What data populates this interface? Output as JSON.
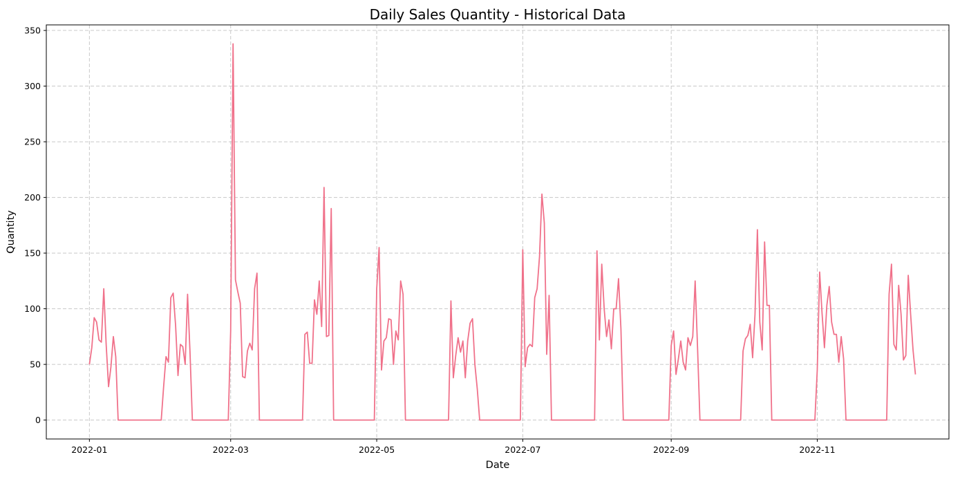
{
  "chart_data": {
    "type": "line",
    "title": "Daily Sales Quantity - Historical Data",
    "xlabel": "Date",
    "ylabel": "Quantity",
    "x_ticks": [
      "2022-01",
      "2022-03",
      "2022-05",
      "2022-07",
      "2022-09",
      "2022-11"
    ],
    "y_ticks": [
      0,
      50,
      100,
      150,
      200,
      250,
      300,
      350
    ],
    "xlim": [
      "2021-12-14",
      "2022-12-26"
    ],
    "ylim": [
      -17,
      355
    ],
    "grid": true,
    "line_color": "#f0718a",
    "grid_color": "#c8c8c8",
    "x": [
      "2022-01-01",
      "2022-01-02",
      "2022-01-03",
      "2022-01-04",
      "2022-01-05",
      "2022-01-06",
      "2022-01-07",
      "2022-01-08",
      "2022-01-09",
      "2022-01-10",
      "2022-01-11",
      "2022-01-12",
      "2022-01-13",
      "2022-02-01",
      "2022-02-02",
      "2022-02-03",
      "2022-02-04",
      "2022-02-05",
      "2022-02-06",
      "2022-02-07",
      "2022-02-08",
      "2022-02-09",
      "2022-02-10",
      "2022-02-11",
      "2022-02-12",
      "2022-03-01",
      "2022-03-02",
      "2022-03-03",
      "2022-03-04",
      "2022-03-05",
      "2022-03-06",
      "2022-03-07",
      "2022-03-08",
      "2022-03-09",
      "2022-03-10",
      "2022-03-11",
      "2022-03-12",
      "2022-04-01",
      "2022-04-02",
      "2022-04-03",
      "2022-04-04",
      "2022-04-05",
      "2022-04-06",
      "2022-04-07",
      "2022-04-08",
      "2022-04-09",
      "2022-04-10",
      "2022-04-11",
      "2022-04-12",
      "2022-05-01",
      "2022-05-02",
      "2022-05-03",
      "2022-05-04",
      "2022-05-05",
      "2022-05-06",
      "2022-05-07",
      "2022-05-08",
      "2022-05-09",
      "2022-05-10",
      "2022-05-11",
      "2022-05-12",
      "2022-06-01",
      "2022-06-02",
      "2022-06-03",
      "2022-06-04",
      "2022-06-05",
      "2022-06-06",
      "2022-06-07",
      "2022-06-08",
      "2022-06-09",
      "2022-06-10",
      "2022-06-11",
      "2022-06-12",
      "2022-07-01",
      "2022-07-02",
      "2022-07-03",
      "2022-07-04",
      "2022-07-05",
      "2022-07-06",
      "2022-07-07",
      "2022-07-08",
      "2022-07-09",
      "2022-07-10",
      "2022-07-11",
      "2022-07-12",
      "2022-08-01",
      "2022-08-02",
      "2022-08-03",
      "2022-08-04",
      "2022-08-05",
      "2022-08-06",
      "2022-08-07",
      "2022-08-08",
      "2022-08-09",
      "2022-08-10",
      "2022-08-11",
      "2022-08-12",
      "2022-09-01",
      "2022-09-02",
      "2022-09-03",
      "2022-09-04",
      "2022-09-05",
      "2022-09-06",
      "2022-09-07",
      "2022-09-08",
      "2022-09-09",
      "2022-09-10",
      "2022-09-11",
      "2022-09-12",
      "2022-10-01",
      "2022-10-02",
      "2022-10-03",
      "2022-10-04",
      "2022-10-05",
      "2022-10-06",
      "2022-10-07",
      "2022-10-08",
      "2022-10-09",
      "2022-10-10",
      "2022-10-11",
      "2022-10-12",
      "2022-11-01",
      "2022-11-02",
      "2022-11-03",
      "2022-11-04",
      "2022-11-05",
      "2022-11-06",
      "2022-11-07",
      "2022-11-08",
      "2022-11-09",
      "2022-11-10",
      "2022-11-11",
      "2022-11-12",
      "2022-12-01",
      "2022-12-02",
      "2022-12-03",
      "2022-12-04",
      "2022-12-05",
      "2022-12-06",
      "2022-12-07",
      "2022-12-08",
      "2022-12-09",
      "2022-12-10",
      "2022-12-11",
      "2022-12-12"
    ],
    "y": [
      50,
      65,
      92,
      88,
      72,
      70,
      118,
      68,
      30,
      48,
      75,
      57,
      0,
      30,
      57,
      52,
      110,
      114,
      85,
      40,
      68,
      66,
      50,
      113,
      62,
      80,
      338,
      126,
      115,
      105,
      39,
      38,
      62,
      69,
      63,
      118,
      132,
      77,
      79,
      51,
      51,
      108,
      95,
      125,
      84,
      209,
      75,
      76,
      190,
      118,
      155,
      45,
      71,
      74,
      91,
      90,
      50,
      80,
      72,
      125,
      113,
      107,
      38,
      58,
      74,
      61,
      71,
      38,
      71,
      87,
      91,
      50,
      28,
      153,
      48,
      65,
      68,
      66,
      110,
      118,
      147,
      203,
      177,
      59,
      112,
      152,
      72,
      140,
      100,
      75,
      90,
      64,
      100,
      100,
      127,
      82,
      0,
      67,
      80,
      41,
      55,
      71,
      52,
      45,
      74,
      67,
      75,
      125,
      65,
      62,
      73,
      76,
      86,
      56,
      95,
      171,
      88,
      63,
      160,
      103,
      103,
      45,
      133,
      96,
      65,
      103,
      120,
      88,
      77,
      77,
      52,
      75,
      55,
      113,
      140,
      68,
      63,
      121,
      95,
      54,
      58,
      130,
      95,
      63,
      41
    ]
  }
}
